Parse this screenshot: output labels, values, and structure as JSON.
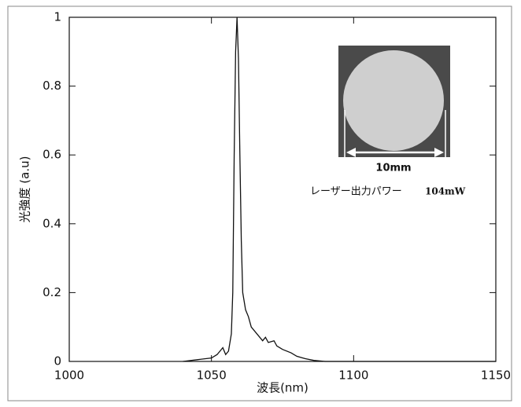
{
  "chart_data": {
    "type": "line",
    "xlabel": "波長(nm)",
    "ylabel": "光強度 (a.u)",
    "x": [
      1040,
      1045,
      1050,
      1052,
      1053,
      1054,
      1055,
      1056,
      1057,
      1057.5,
      1058,
      1058.5,
      1059,
      1059.5,
      1060,
      1060.5,
      1061,
      1062,
      1063,
      1064,
      1066,
      1068,
      1069,
      1070,
      1072,
      1073,
      1075,
      1078,
      1080,
      1083,
      1086,
      1090,
      1150
    ],
    "series": [
      {
        "color": "#111111",
        "values": [
          0,
          0.005,
          0.01,
          0.02,
          0.03,
          0.04,
          0.02,
          0.03,
          0.08,
          0.2,
          0.6,
          0.9,
          1,
          0.88,
          0.6,
          0.35,
          0.2,
          0.15,
          0.13,
          0.1,
          0.08,
          0.06,
          0.07,
          0.055,
          0.06,
          0.045,
          0.035,
          0.025,
          0.015,
          0.008,
          0.003,
          0,
          0
        ]
      }
    ],
    "xlim": [
      1000,
      1150
    ],
    "xticks": [
      1000,
      1050,
      1100,
      1150
    ],
    "ylim": [
      0,
      1
    ],
    "yticks": [
      0,
      0.2,
      0.4,
      0.6,
      0.8,
      1
    ],
    "grid": false,
    "inset_label": "10mm",
    "annotations": [
      "レーザー出力パワー",
      "104mW"
    ]
  }
}
